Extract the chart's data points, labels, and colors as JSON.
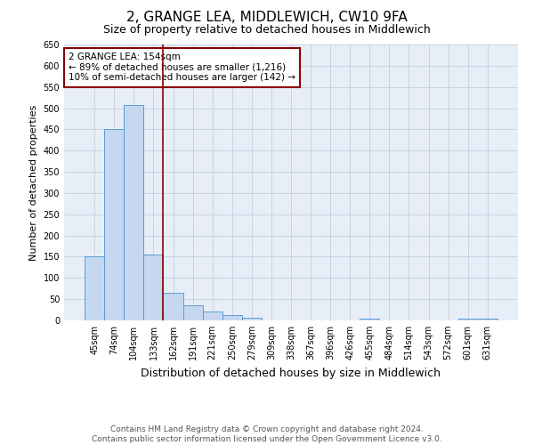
{
  "title": "2, GRANGE LEA, MIDDLEWICH, CW10 9FA",
  "subtitle": "Size of property relative to detached houses in Middlewich",
  "xlabel": "Distribution of detached houses by size in Middlewich",
  "ylabel": "Number of detached properties",
  "footer1": "Contains HM Land Registry data © Crown copyright and database right 2024.",
  "footer2": "Contains public sector information licensed under the Open Government Licence v3.0.",
  "annotation_line1": "2 GRANGE LEA: 154sqm",
  "annotation_line2": "← 89% of detached houses are smaller (1,216)",
  "annotation_line3": "10% of semi-detached houses are larger (142) →",
  "categories": [
    "45sqm",
    "74sqm",
    "104sqm",
    "133sqm",
    "162sqm",
    "191sqm",
    "221sqm",
    "250sqm",
    "279sqm",
    "309sqm",
    "338sqm",
    "367sqm",
    "396sqm",
    "426sqm",
    "455sqm",
    "484sqm",
    "514sqm",
    "543sqm",
    "572sqm",
    "601sqm",
    "631sqm"
  ],
  "values": [
    150,
    450,
    507,
    155,
    65,
    35,
    20,
    13,
    7,
    0,
    0,
    0,
    0,
    0,
    5,
    0,
    0,
    0,
    0,
    5,
    5
  ],
  "bar_color": "#c5d8f0",
  "bar_edge_color": "#5b9bd5",
  "vline_color": "#8b0000",
  "vline_position": 4,
  "ylim": [
    0,
    650
  ],
  "yticks": [
    0,
    50,
    100,
    150,
    200,
    250,
    300,
    350,
    400,
    450,
    500,
    550,
    600,
    650
  ],
  "background_color": "#e8eef8",
  "grid_color": "#c0c8d8",
  "title_fontsize": 11,
  "subtitle_fontsize": 9,
  "xlabel_fontsize": 9,
  "ylabel_fontsize": 8,
  "tick_fontsize": 7,
  "annotation_fontsize": 7.5,
  "footer_fontsize": 6.5
}
